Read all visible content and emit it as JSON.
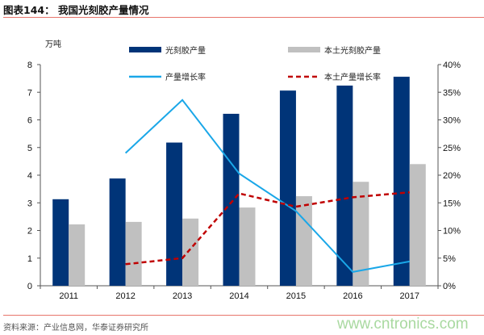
{
  "header": {
    "title": "图表144：  我国光刻胶产量情况"
  },
  "footer": {
    "source": "资料来源：产业信息网，华泰证券研究所",
    "watermark": "www.cntronics.com"
  },
  "chart_data": {
    "type": "bar+line",
    "title": "",
    "ylabel": "万吨",
    "ylim": [
      0,
      8
    ],
    "y2lim": [
      0,
      0.4
    ],
    "yticks": [
      "0",
      "1",
      "2",
      "3",
      "4",
      "5",
      "6",
      "7",
      "8"
    ],
    "y2ticks": [
      "0%",
      "5%",
      "10%",
      "15%",
      "20%",
      "25%",
      "30%",
      "35%",
      "40%"
    ],
    "categories": [
      "2011",
      "2012",
      "2013",
      "2014",
      "2015",
      "2016",
      "2017"
    ],
    "legend_placement": "top",
    "grid": false,
    "series": [
      {
        "name": "光刻胶产量",
        "type": "bar",
        "axis": "left",
        "color": "#003478",
        "values": [
          3.13,
          3.88,
          5.18,
          6.22,
          7.06,
          7.24,
          7.56
        ]
      },
      {
        "name": "本土光刻胶产量",
        "type": "bar",
        "axis": "left",
        "color": "#c0c0c0",
        "values": [
          2.22,
          2.31,
          2.43,
          2.83,
          3.24,
          3.76,
          4.4
        ]
      },
      {
        "name": "产量增长率",
        "type": "line",
        "axis": "right",
        "color": "#1aa7e8",
        "dash": false,
        "values": [
          null,
          0.24,
          0.336,
          0.203,
          0.135,
          0.025,
          0.044
        ]
      },
      {
        "name": "本土产量增长率",
        "type": "line",
        "axis": "right",
        "color": "#c00000",
        "dash": true,
        "values": [
          null,
          0.039,
          0.05,
          0.167,
          0.143,
          0.16,
          0.169
        ]
      }
    ]
  }
}
